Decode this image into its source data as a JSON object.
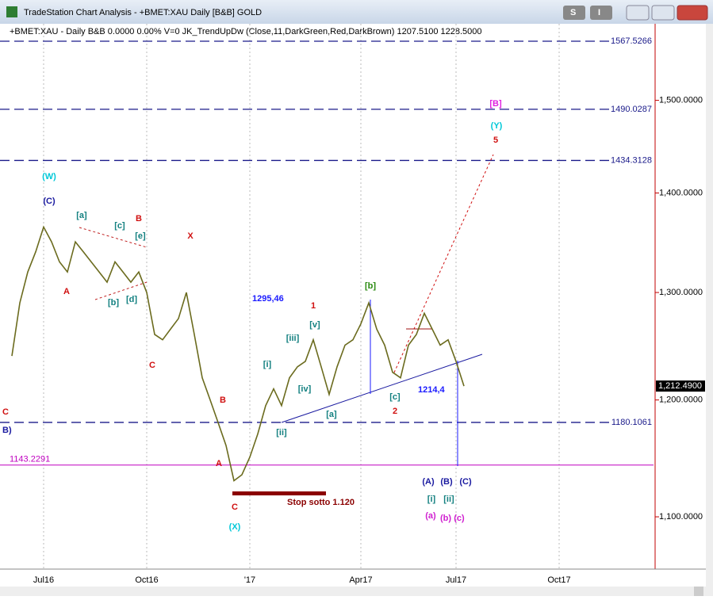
{
  "window": {
    "title": "TradeStation Chart Analysis - +BMET:XAU Daily [B&B] GOLD",
    "buttons": [
      "S",
      "I"
    ]
  },
  "chart_data": {
    "type": "line",
    "header": "+BMET:XAU - Daily  B&B  0.0000  0.00%  V=0  JK_TrendUpDw (Close,11,DarkGreen,Red,DarkBrown)  1207.5100  1228.5000",
    "categories": [
      null,
      null,
      null,
      null,
      "Jul16",
      null,
      null,
      null,
      null,
      null,
      null,
      null,
      null,
      null,
      null,
      null,
      null,
      "Oct16",
      null,
      null,
      null,
      null,
      null,
      null,
      null,
      null,
      null,
      null,
      null,
      null,
      "'17",
      null,
      null,
      null,
      null,
      null,
      null,
      null,
      null,
      null,
      null,
      null,
      null,
      null,
      "Apr17",
      null,
      null,
      null,
      null,
      null,
      null,
      null,
      null,
      null,
      null,
      null,
      "Jul17",
      null,
      null,
      null,
      null,
      null,
      null,
      null,
      null,
      null,
      null,
      null,
      null,
      "Oct17",
      null,
      null,
      null,
      null,
      null,
      null,
      null,
      null,
      null,
      null,
      null
    ],
    "series": [
      {
        "name": "+BMET:XAU",
        "color": "#6b6b1e",
        "values": [
          1240,
          1290,
          1320,
          1340,
          1365,
          1350,
          1330,
          1320,
          1350,
          1340,
          1330,
          1320,
          1310,
          1330,
          1320,
          1310,
          1320,
          1300,
          1260,
          1255,
          1265,
          1275,
          1300,
          1260,
          1220,
          1200,
          1180,
          1160,
          1130,
          1135,
          1150,
          1170,
          1195,
          1210,
          1195,
          1220,
          1230,
          1235,
          1255,
          1230,
          1205,
          1230,
          1250,
          1255,
          1270,
          1290,
          1265,
          1250,
          1225,
          1220,
          1250,
          1260,
          1280,
          1265,
          1250,
          1255,
          1235,
          1212.49,
          null,
          null,
          null,
          null,
          null,
          null,
          null,
          null,
          null,
          null,
          null,
          null,
          null,
          null,
          null,
          null,
          null,
          null,
          null,
          null,
          null,
          null,
          null
        ]
      }
    ],
    "ylim": [
      1058,
      1588
    ],
    "log_scale": true,
    "yticks": [
      {
        "value": 1100,
        "label": "1,100.0000"
      },
      {
        "value": 1200,
        "label": "1,200.0000"
      },
      {
        "value": 1300,
        "label": "1,300.0000"
      },
      {
        "value": 1400,
        "label": "1,400.0000"
      },
      {
        "value": 1500,
        "label": "1,500.0000"
      }
    ],
    "levels": [
      1567.5266,
      1490.0287,
      1434.3128,
      1180.1061
    ],
    "support": 1143.2291,
    "price_marker": {
      "value": 1212.49,
      "label": "1,212.4900"
    },
    "annotations": [
      {
        "text": "(W)",
        "color": "#00c8d8"
      },
      {
        "text": "(C)",
        "color": "#1a1aa0"
      },
      {
        "text": "[a]",
        "color": "#138080"
      },
      {
        "text": "[c]",
        "color": "#138080"
      },
      {
        "text": "B",
        "color": "#d01010"
      },
      {
        "text": "[e]",
        "color": "#138080"
      },
      {
        "text": "A",
        "color": "#d01010"
      },
      {
        "text": "[b]",
        "color": "#138080"
      },
      {
        "text": "[d]",
        "color": "#138080"
      },
      {
        "text": "X",
        "color": "#d01010"
      },
      {
        "text": "C",
        "color": "#d01010"
      },
      {
        "text": "B",
        "color": "#d01010"
      },
      {
        "text": "A",
        "color": "#d01010"
      },
      {
        "text": "C",
        "color": "#d01010"
      },
      {
        "text": "(X)",
        "color": "#00c8d8"
      },
      {
        "text": "[i]",
        "color": "#138080"
      },
      {
        "text": "[iii]",
        "color": "#138080"
      },
      {
        "text": "[v]",
        "color": "#138080"
      },
      {
        "text": "1",
        "color": "#d01010"
      },
      {
        "text": "[iv]",
        "color": "#138080"
      },
      {
        "text": "[ii]",
        "color": "#138080"
      },
      {
        "text": "[a]",
        "color": "#138080"
      },
      {
        "text": "[b]",
        "color": "#2a8a10"
      },
      {
        "text": "[c]",
        "color": "#138080"
      },
      {
        "text": "2",
        "color": "#d01010"
      },
      {
        "text": "(A)",
        "color": "#1a1aa0"
      },
      {
        "text": "(B)",
        "color": "#1a1aa0"
      },
      {
        "text": "(C)",
        "color": "#1a1aa0"
      },
      {
        "text": "[i]",
        "color": "#138080"
      },
      {
        "text": "[ii]",
        "color": "#138080"
      },
      {
        "text": "(a)",
        "color": "#d020d0"
      },
      {
        "text": "(b)",
        "color": "#d020d0"
      },
      {
        "text": "(c)",
        "color": "#d020d0"
      },
      {
        "text": "[B]",
        "color": "#e020e0"
      },
      {
        "text": "(Y)",
        "color": "#00c8d8"
      },
      {
        "text": "5",
        "color": "#d01010"
      },
      {
        "text": "B)",
        "color": "#1a1aa0"
      },
      {
        "text": "C",
        "color": "#d01010"
      },
      {
        "text": "1295,46",
        "color": "#1a1aff"
      },
      {
        "text": "1214,4",
        "color": "#1a1aff"
      },
      {
        "text": "Stop sotto 1.120",
        "color": "#8b0000"
      }
    ]
  }
}
